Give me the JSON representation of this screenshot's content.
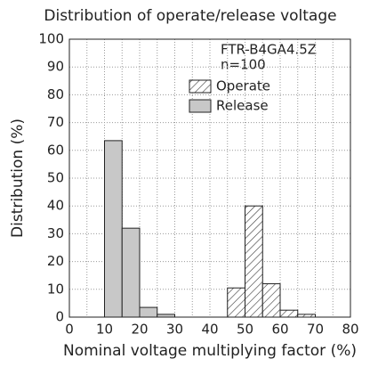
{
  "chart_data": {
    "type": "histogram",
    "title": "Distribution of operate/release voltage",
    "xlabel": "Nominal voltage multiplying factor (%)",
    "ylabel": "Distribution (%)",
    "annotations": [
      "FTR-B4GA4.5Z",
      "n=100"
    ],
    "series": [
      {
        "name": "Operate",
        "color": "#ffffff",
        "pattern": "hatch",
        "bins": [
          45,
          50,
          55,
          60,
          65,
          70
        ],
        "values": [
          10.5,
          40,
          12,
          2.5,
          1
        ]
      },
      {
        "name": "Release",
        "color": "#c8c8c8",
        "bins": [
          10,
          15,
          20,
          25,
          30
        ],
        "values": [
          63.5,
          32,
          3.5,
          1
        ]
      }
    ],
    "xlim": [
      0,
      80
    ],
    "xticks": [
      0,
      10,
      20,
      30,
      40,
      50,
      60,
      70,
      80
    ],
    "x_minor_ticks": [
      5,
      15,
      25,
      35,
      45,
      55,
      65,
      75
    ],
    "ylim": [
      0,
      100
    ],
    "yticks": [
      0,
      10,
      20,
      30,
      40,
      50,
      60,
      70,
      80,
      90,
      100
    ],
    "grid": true
  }
}
